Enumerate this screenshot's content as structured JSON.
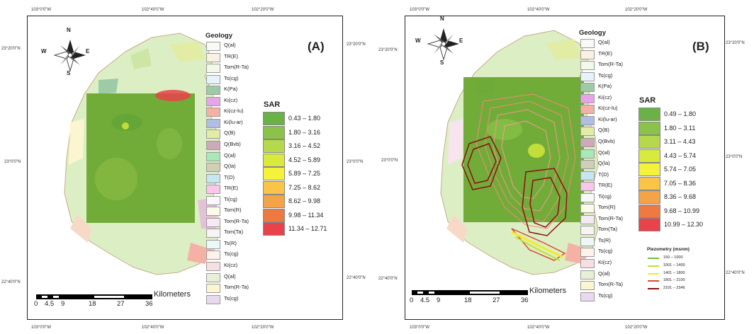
{
  "ticks": {
    "lon": [
      "103°0'0\"W",
      "102°40'0\"W",
      "102°20'0\"W"
    ],
    "lat_left": [
      "23°20'0\"N",
      "23°0'0\"N",
      "22°40'0\"N"
    ],
    "lat_right": [
      "23°20'0\"N",
      "23°0'0\"N",
      "22°40'0\"N"
    ]
  },
  "north_arrow": {
    "n": "N",
    "s": "S",
    "e": "E",
    "w": "W"
  },
  "scale": {
    "unit": "Kilometers",
    "labels": [
      "0",
      "4.5",
      "9",
      "18",
      "27",
      "36"
    ]
  },
  "colors": {
    "background": "#eaf2dc",
    "sar_overlay": "#6aa832",
    "sar": [
      "#6bb246",
      "#8bc34a",
      "#b5d94b",
      "#d8ea3c",
      "#f5f23a",
      "#f9c448",
      "#f4a347",
      "#ef7a41",
      "#e8424a"
    ],
    "piezometry": [
      "#6fbf3a",
      "#bde32d",
      "#f2ea2c",
      "#d94a3a",
      "#8b0f16"
    ]
  },
  "panels": {
    "A": {
      "label": "(A)",
      "geology": {
        "title": "Geology",
        "items": [
          {
            "label": "Q(al)",
            "color": "#f9f9f5"
          },
          {
            "label": "TR(E)",
            "color": "#fbf1e3"
          },
          {
            "label": "Tom(R-Ta)",
            "color": "#f3f9e9"
          },
          {
            "label": "Ts(cg)",
            "color": "#e6f3fb"
          },
          {
            "label": "K(Pa)",
            "color": "#9ccba6"
          },
          {
            "label": "Ki(cz)",
            "color": "#e7a4e8"
          },
          {
            "label": "Ki(cz-lu)",
            "color": "#f5b1a5"
          },
          {
            "label": "Ki(lu-ar)",
            "color": "#b2bde4"
          },
          {
            "label": "Q(B)",
            "color": "#e2eca4"
          },
          {
            "label": "Q(Bvb)",
            "color": "#cea9ba"
          },
          {
            "label": "Q(al)",
            "color": "#a9e8b9"
          },
          {
            "label": "Q(la)",
            "color": "#cfcfb5"
          },
          {
            "label": "T(D)",
            "color": "#c5e6f2"
          },
          {
            "label": "TR(E)",
            "color": "#fbc6ea"
          },
          {
            "label": "Ti(cg)",
            "color": "#f7f9fb"
          },
          {
            "label": "Tom(R)",
            "color": "#fbfbe9"
          },
          {
            "label": "Tom(R-Ta)",
            "color": "#f5eaf3"
          },
          {
            "label": "Tom(Ta)",
            "color": "#f9f3f5"
          },
          {
            "label": "Ts(R)",
            "color": "#eef7f7"
          },
          {
            "label": "Ts(cg)",
            "color": "#fdf2ec"
          },
          {
            "label": "Ki(cz)",
            "color": "#f6dfe2"
          },
          {
            "label": "Q(al)",
            "color": "#e7f0d4"
          },
          {
            "label": "Tom(R-Ta)",
            "color": "#fbf6cf"
          },
          {
            "label": "Ts(cg)",
            "color": "#e9d9ef"
          }
        ]
      },
      "sar": {
        "title": "SAR",
        "classes": [
          "0.43 – 1.80",
          "1.80 – 3.16",
          "3.16 – 4.52",
          "4.52 – 5.89",
          "5.89 – 7.25",
          "7.25 – 8.62",
          "8.62 – 9.98",
          "9.98 – 11.34",
          "11.34 – 12.71"
        ]
      }
    },
    "B": {
      "label": "(B)",
      "geology": {
        "title": "Geology",
        "items": [
          {
            "label": "Q(al)",
            "color": "#f9f9f5"
          },
          {
            "label": "TR(E)",
            "color": "#fbf1e3"
          },
          {
            "label": "Tom(R-Ta)",
            "color": "#f3f9e9"
          },
          {
            "label": "Ts(cg)",
            "color": "#e6f3fb"
          },
          {
            "label": "K(Pa)",
            "color": "#9ccba6"
          },
          {
            "label": "Ki(cz)",
            "color": "#e7a4e8"
          },
          {
            "label": "Ki(cz-lu)",
            "color": "#f5b1a5"
          },
          {
            "label": "Ki(lu-ar)",
            "color": "#b2bde4"
          },
          {
            "label": "Q(B)",
            "color": "#e2eca4"
          },
          {
            "label": "Q(Bvb)",
            "color": "#cea9ba"
          },
          {
            "label": "Q(al)",
            "color": "#a9e8b9"
          },
          {
            "label": "Q(la)",
            "color": "#cfcfb5"
          },
          {
            "label": "T(D)",
            "color": "#c5e6f2"
          },
          {
            "label": "TR(E)",
            "color": "#fbc6ea"
          },
          {
            "label": "Ti(cg)",
            "color": "#f7f9fb"
          },
          {
            "label": "Tom(R)",
            "color": "#fbfbe9"
          },
          {
            "label": "Tom(R-Ta)",
            "color": "#f5eaf3"
          },
          {
            "label": "Tom(Ta)",
            "color": "#f9f3f5"
          },
          {
            "label": "Ts(R)",
            "color": "#eef7f7"
          },
          {
            "label": "Ts(cg)",
            "color": "#fdf2ec"
          },
          {
            "label": "Ki(cz)",
            "color": "#f6dfe2"
          },
          {
            "label": "Q(al)",
            "color": "#e7f0d4"
          },
          {
            "label": "Tom(R-Ta)",
            "color": "#fbf6cf"
          },
          {
            "label": "Ts(cg)",
            "color": "#e9d9ef"
          }
        ]
      },
      "sar": {
        "title": "SAR",
        "classes": [
          "0.49 – 1.80",
          "1.80 – 3.11",
          "3.11 – 4.43",
          "4.43 – 5.74",
          "5.74 – 7.05",
          "7.05 – 8.36",
          "8.36 – 9.68",
          "9.68 – 10.99",
          "10.99 – 12.30"
        ]
      },
      "piezometry": {
        "title": "Piezometry (msnm)",
        "classes": [
          "150 – 1000",
          "1001 – 1400",
          "1401 – 1800",
          "1801 – 2100",
          "2101 – 2346"
        ]
      }
    }
  }
}
